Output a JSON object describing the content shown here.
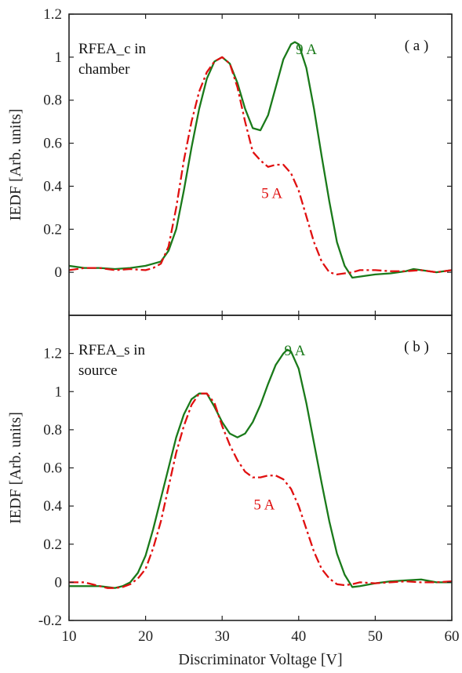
{
  "chart_data": [
    {
      "type": "line",
      "panel_label": "( a )",
      "annotation_lines": [
        "RFEA_c in",
        "chamber"
      ],
      "ylabel": "IEDF [Arb. units]",
      "xlabel": "",
      "xlim": [
        10,
        60
      ],
      "ylim": [
        -0.2,
        1.2
      ],
      "x_ticks": [
        10,
        20,
        30,
        40,
        50,
        60
      ],
      "x_tick_labels": [],
      "y_ticks": [
        0,
        0.2,
        0.4,
        0.6,
        0.8,
        1,
        1.2
      ],
      "y_tick_labels": [
        "0",
        "0.2",
        "0.4",
        "0.6",
        "0.8",
        "1",
        "1.2"
      ],
      "grid": false,
      "series": [
        {
          "name": "9 A",
          "color": "#1a7a1a",
          "style": "solid",
          "label_pos": [
            41,
            1.04
          ],
          "x": [
            10,
            12,
            14,
            16,
            18,
            20,
            21,
            22,
            23,
            24,
            25,
            26,
            27,
            28,
            29,
            30,
            31,
            32,
            33,
            34,
            35,
            36,
            37,
            38,
            39,
            39.5,
            40,
            41,
            42,
            43,
            44,
            45,
            46,
            47,
            48,
            50,
            52,
            54,
            55,
            56,
            58,
            60
          ],
          "y": [
            0.03,
            0.02,
            0.02,
            0.015,
            0.02,
            0.03,
            0.04,
            0.05,
            0.1,
            0.2,
            0.38,
            0.58,
            0.76,
            0.9,
            0.98,
            1.0,
            0.97,
            0.88,
            0.76,
            0.67,
            0.66,
            0.73,
            0.86,
            0.99,
            1.06,
            1.07,
            1.06,
            0.95,
            0.76,
            0.54,
            0.33,
            0.14,
            0.03,
            -0.025,
            -0.02,
            -0.01,
            -0.005,
            0.005,
            0.015,
            0.01,
            0.0,
            0.01
          ]
        },
        {
          "name": "5 A",
          "color": "#e01010",
          "style": "dashdot",
          "label_pos": [
            36.5,
            0.37
          ],
          "x": [
            10,
            12,
            14,
            16,
            18,
            20,
            21,
            22,
            23,
            24,
            25,
            26,
            27,
            28,
            29,
            30,
            31,
            32,
            33,
            34,
            35,
            36,
            37,
            38,
            39,
            40,
            41,
            42,
            43,
            44,
            45,
            46,
            47,
            48,
            50,
            52,
            54,
            56,
            58,
            60
          ],
          "y": [
            0.01,
            0.02,
            0.02,
            0.01,
            0.015,
            0.01,
            0.02,
            0.04,
            0.12,
            0.3,
            0.52,
            0.7,
            0.84,
            0.93,
            0.98,
            1.0,
            0.97,
            0.86,
            0.7,
            0.56,
            0.52,
            0.49,
            0.5,
            0.5,
            0.46,
            0.38,
            0.26,
            0.14,
            0.05,
            0.0,
            -0.01,
            -0.005,
            0.0,
            0.01,
            0.01,
            0.005,
            0.005,
            0.01,
            0.0,
            0.01
          ]
        }
      ]
    },
    {
      "type": "line",
      "panel_label": "( b )",
      "annotation_lines": [
        "RFEA_s in",
        "source"
      ],
      "ylabel": "IEDF [Arb. units]",
      "xlabel": "Discriminator Voltage [V]",
      "xlim": [
        10,
        60
      ],
      "ylim": [
        -0.2,
        1.4
      ],
      "x_ticks": [
        10,
        20,
        30,
        40,
        50,
        60
      ],
      "x_tick_labels": [
        "10",
        "20",
        "30",
        "40",
        "50",
        "60"
      ],
      "y_ticks": [
        -0.2,
        0,
        0.2,
        0.4,
        0.6,
        0.8,
        1,
        1.2
      ],
      "y_tick_labels": [
        "-0.2",
        "0",
        "0.2",
        "0.4",
        "0.6",
        "0.8",
        "1",
        "1.2"
      ],
      "grid": false,
      "series": [
        {
          "name": "9 A",
          "color": "#1a7a1a",
          "style": "solid",
          "label_pos": [
            39.5,
            1.22
          ],
          "x": [
            10,
            12,
            14,
            16,
            17,
            18,
            19,
            20,
            21,
            22,
            23,
            24,
            25,
            26,
            27,
            28,
            29,
            30,
            31,
            32,
            33,
            34,
            35,
            36,
            37,
            38,
            38.5,
            39,
            40,
            41,
            42,
            43,
            44,
            45,
            46,
            47,
            48,
            50,
            52,
            54,
            56,
            58,
            60
          ],
          "y": [
            -0.02,
            -0.02,
            -0.02,
            -0.03,
            -0.02,
            0.0,
            0.05,
            0.14,
            0.28,
            0.44,
            0.6,
            0.76,
            0.88,
            0.96,
            0.99,
            0.99,
            0.92,
            0.84,
            0.78,
            0.76,
            0.78,
            0.84,
            0.93,
            1.04,
            1.14,
            1.2,
            1.22,
            1.21,
            1.12,
            0.94,
            0.73,
            0.52,
            0.32,
            0.15,
            0.04,
            -0.025,
            -0.02,
            -0.005,
            0.005,
            0.01,
            0.015,
            0.0,
            0.0
          ]
        },
        {
          "name": "5 A",
          "color": "#e01010",
          "style": "dashdot",
          "label_pos": [
            35.5,
            0.41
          ],
          "x": [
            10,
            12,
            14,
            15,
            16,
            17,
            18,
            19,
            20,
            21,
            22,
            23,
            24,
            25,
            26,
            27,
            28,
            29,
            30,
            31,
            32,
            33,
            34,
            35,
            36,
            37,
            38,
            39,
            40,
            41,
            42,
            43,
            44,
            45,
            46,
            47,
            48,
            50,
            52,
            54,
            56,
            58,
            60
          ],
          "y": [
            0.0,
            0.0,
            -0.02,
            -0.03,
            -0.03,
            -0.025,
            -0.01,
            0.02,
            0.07,
            0.18,
            0.32,
            0.5,
            0.68,
            0.82,
            0.93,
            0.99,
            0.99,
            0.94,
            0.82,
            0.72,
            0.64,
            0.58,
            0.55,
            0.55,
            0.56,
            0.56,
            0.54,
            0.49,
            0.4,
            0.28,
            0.16,
            0.07,
            0.02,
            -0.01,
            -0.015,
            -0.01,
            0.0,
            -0.005,
            0.0,
            0.005,
            0.0,
            0.0,
            0.005
          ]
        }
      ]
    }
  ]
}
